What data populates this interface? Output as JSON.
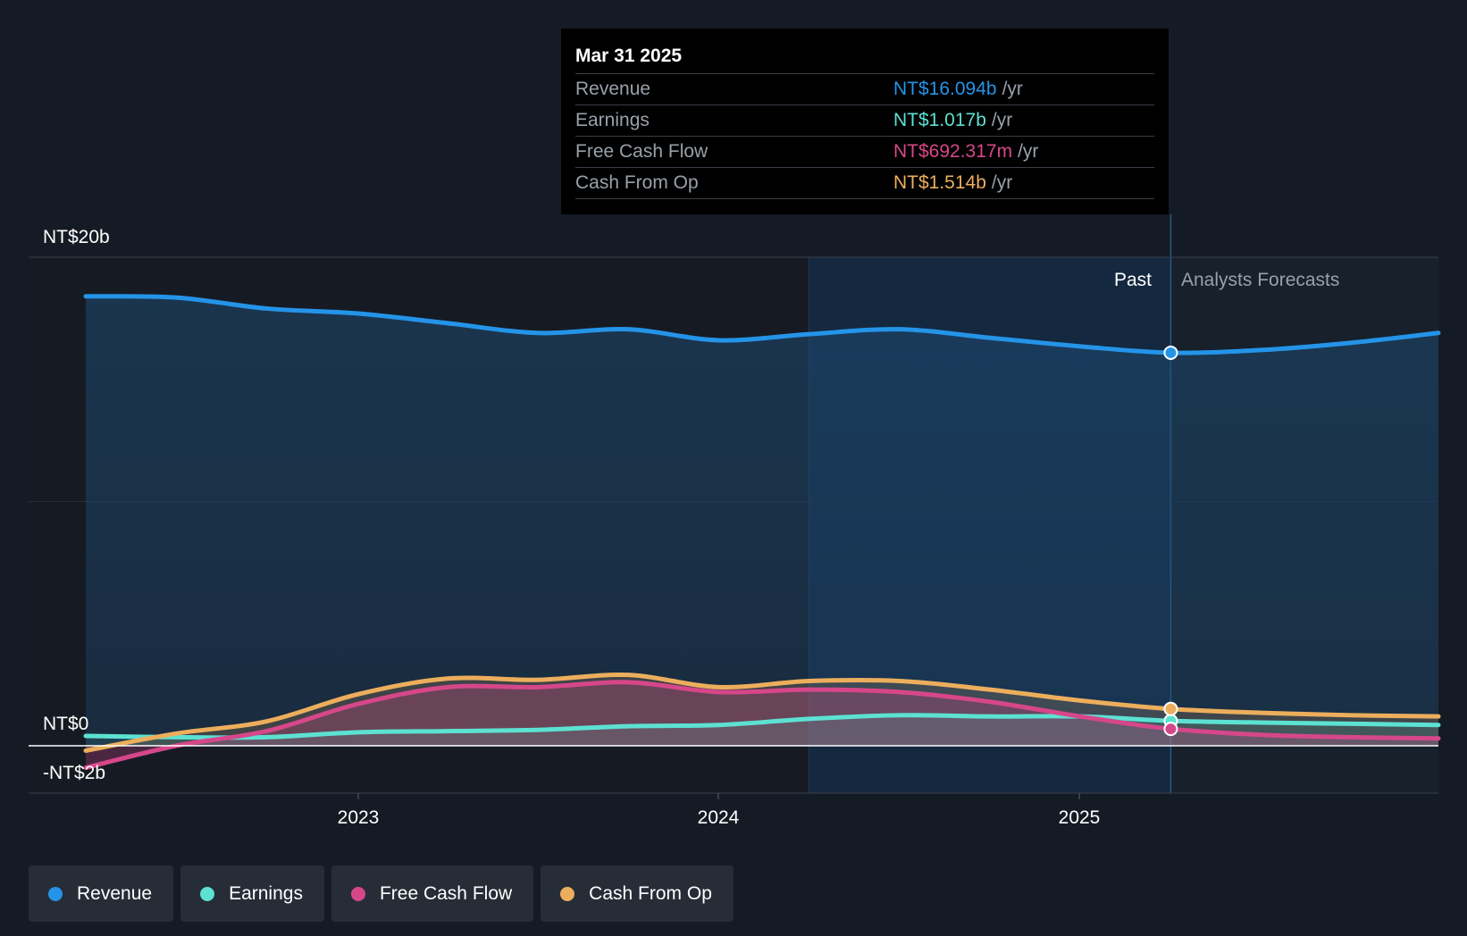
{
  "chart_data": {
    "type": "area",
    "x_ticks": [
      "2023",
      "2024",
      "2025"
    ],
    "y_tick_labels": [
      "NT$20b",
      "NT$0",
      "-NT$2b"
    ],
    "ylim": [
      -2,
      20
    ],
    "zone_labels": {
      "past": "Past",
      "forecast": "Analysts Forecasts"
    },
    "past_end": "Mar 31 2025",
    "series": [
      {
        "name": "Revenue",
        "color": "#2494e8",
        "x": [
          2022.25,
          2022.5,
          2022.75,
          2023.0,
          2023.25,
          2023.5,
          2023.75,
          2024.0,
          2024.25,
          2024.5,
          2024.75,
          2025.0,
          2025.25,
          2025.5,
          2025.75,
          2025.99
        ],
        "y": [
          18.4,
          18.35,
          17.9,
          17.7,
          17.3,
          16.9,
          17.05,
          16.6,
          16.85,
          17.05,
          16.7,
          16.35,
          16.09,
          16.2,
          16.5,
          16.9
        ]
      },
      {
        "name": "Earnings",
        "color": "#5ce1d2",
        "x": [
          2022.25,
          2022.5,
          2022.75,
          2023.0,
          2023.25,
          2023.5,
          2023.75,
          2024.0,
          2024.25,
          2024.5,
          2024.75,
          2025.0,
          2025.25,
          2025.5,
          2025.75,
          2025.99
        ],
        "y": [
          0.4,
          0.35,
          0.35,
          0.55,
          0.6,
          0.65,
          0.8,
          0.85,
          1.1,
          1.25,
          1.2,
          1.2,
          1.02,
          0.95,
          0.9,
          0.85
        ]
      },
      {
        "name": "Free Cash Flow",
        "color": "#d6478a",
        "x": [
          2022.25,
          2022.5,
          2022.75,
          2023.0,
          2023.25,
          2023.5,
          2023.75,
          2024.0,
          2024.25,
          2024.5,
          2024.75,
          2025.0,
          2025.25,
          2025.5,
          2025.75,
          2025.99
        ],
        "y": [
          -0.9,
          0.0,
          0.6,
          1.7,
          2.4,
          2.4,
          2.6,
          2.2,
          2.3,
          2.2,
          1.8,
          1.2,
          0.69,
          0.45,
          0.35,
          0.3
        ]
      },
      {
        "name": "Cash From Op",
        "color": "#ecae5c",
        "x": [
          2022.25,
          2022.5,
          2022.75,
          2023.0,
          2023.25,
          2023.5,
          2023.75,
          2024.0,
          2024.25,
          2024.5,
          2024.75,
          2025.0,
          2025.25,
          2025.5,
          2025.75,
          2025.99
        ],
        "y": [
          -0.2,
          0.5,
          1.0,
          2.1,
          2.75,
          2.7,
          2.9,
          2.4,
          2.65,
          2.65,
          2.3,
          1.85,
          1.51,
          1.35,
          1.25,
          1.2
        ]
      }
    ]
  },
  "tooltip": {
    "date": "Mar 31 2025",
    "unit": "/yr",
    "rows": [
      {
        "label": "Revenue",
        "value": "NT$16.094b",
        "color": "#2494e8"
      },
      {
        "label": "Earnings",
        "value": "NT$1.017b",
        "color": "#5ce1d2"
      },
      {
        "label": "Free Cash Flow",
        "value": "NT$692.317m",
        "color": "#d6478a"
      },
      {
        "label": "Cash From Op",
        "value": "NT$1.514b",
        "color": "#ecae5c"
      }
    ]
  },
  "legend": [
    {
      "label": "Revenue",
      "color": "#2494e8"
    },
    {
      "label": "Earnings",
      "color": "#5ce1d2"
    },
    {
      "label": "Free Cash Flow",
      "color": "#d6478a"
    },
    {
      "label": "Cash From Op",
      "color": "#ecae5c"
    }
  ]
}
